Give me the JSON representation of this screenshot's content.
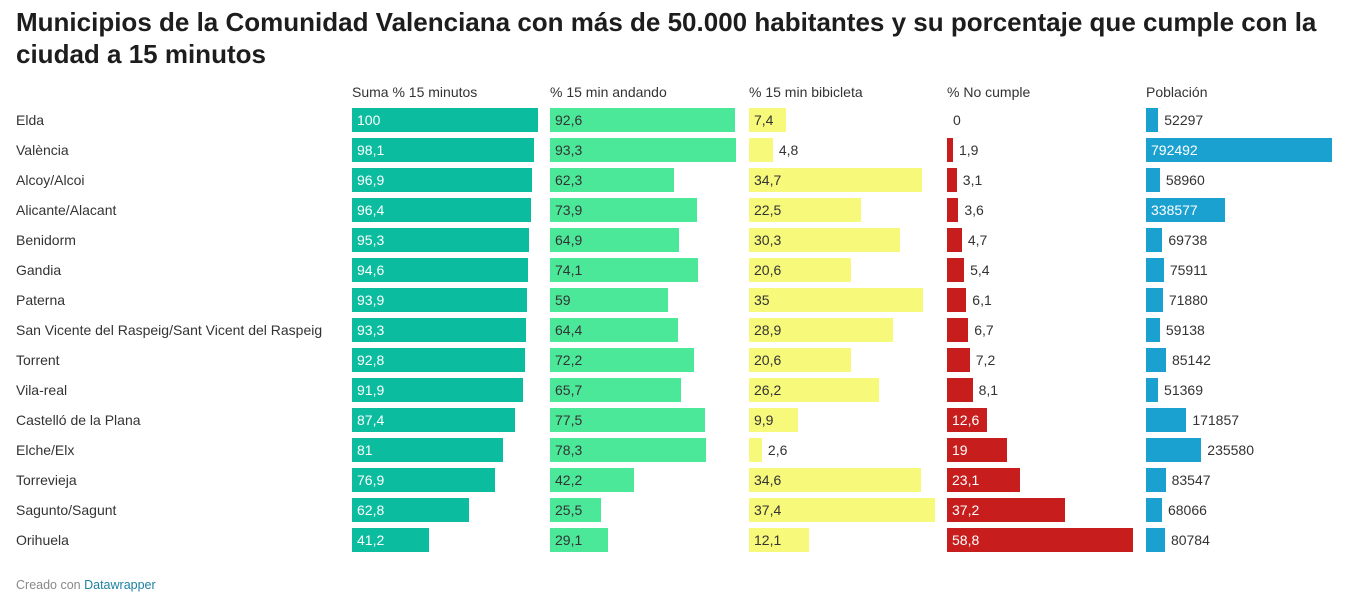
{
  "title": "Municipios de la Comunidad Valenciana con más de 50.000 habitantes y su porcentaje que cumple con la ciudad a 15 minutos",
  "footer": {
    "prefix": "Creado con",
    "link": "Datawrapper"
  },
  "chart_data": {
    "type": "table",
    "rows": [
      "Elda",
      "València",
      "Alcoy/Alcoi",
      "Alicante/Alacant",
      "Benidorm",
      "Gandia",
      "Paterna",
      "San Vicente del Raspeig/Sant Vicent del Raspeig",
      "Torrent",
      "Vila-real",
      "Castelló de la Plana",
      "Elche/Elx",
      "Torrevieja",
      "Sagunto/Sagunt",
      "Orihuela"
    ],
    "columns": [
      {
        "name": "Suma % 15 minutos",
        "color": "#0bbc9f",
        "text": "#fff",
        "values": [
          100,
          98.1,
          96.9,
          96.4,
          95.3,
          94.6,
          93.9,
          93.3,
          92.8,
          91.9,
          87.4,
          81,
          76.9,
          62.8,
          41.2
        ],
        "labels": [
          "100",
          "98,1",
          "96,9",
          "96,4",
          "95,3",
          "94,6",
          "93,9",
          "93,3",
          "92,8",
          "91,9",
          "87,4",
          "81",
          "76,9",
          "62,8",
          "41,2"
        ]
      },
      {
        "name": "% 15 min andando",
        "color": "#4ce89a",
        "text": "#333",
        "values": [
          92.6,
          93.3,
          62.3,
          73.9,
          64.9,
          74.1,
          59,
          64.4,
          72.2,
          65.7,
          77.5,
          78.3,
          42.2,
          25.5,
          29.1
        ],
        "labels": [
          "92,6",
          "93,3",
          "62,3",
          "73,9",
          "64,9",
          "74,1",
          "59",
          "64,4",
          "72,2",
          "65,7",
          "77,5",
          "78,3",
          "42,2",
          "25,5",
          "29,1"
        ]
      },
      {
        "name": "% 15 min bibicleta",
        "color": "#f7f97a",
        "text": "#333",
        "values": [
          7.4,
          4.8,
          34.7,
          22.5,
          30.3,
          20.6,
          35,
          28.9,
          20.6,
          26.2,
          9.9,
          2.6,
          34.6,
          37.4,
          12.1
        ],
        "labels": [
          "7,4",
          "4,8",
          "34,7",
          "22,5",
          "30,3",
          "20,6",
          "35",
          "28,9",
          "20,6",
          "26,2",
          "9,9",
          "2,6",
          "34,6",
          "37,4",
          "12,1"
        ]
      },
      {
        "name": "% No cumple",
        "color": "#c71e1d",
        "text": "#fff",
        "values": [
          0,
          1.9,
          3.1,
          3.6,
          4.7,
          5.4,
          6.1,
          6.7,
          7.2,
          8.1,
          12.6,
          19,
          23.1,
          37.2,
          58.8
        ],
        "labels": [
          "0",
          "1,9",
          "3,1",
          "3,6",
          "4,7",
          "5,4",
          "6,1",
          "6,7",
          "7,2",
          "8,1",
          "12,6",
          "19",
          "23,1",
          "37,2",
          "58,8"
        ]
      },
      {
        "name": "Población",
        "color": "#1ba1d0",
        "text": "#fff",
        "values": [
          52297,
          792492,
          58960,
          338577,
          69738,
          75911,
          71880,
          59138,
          85142,
          51369,
          171857,
          235580,
          83547,
          68066,
          80784
        ],
        "labels": [
          "52297",
          "792492",
          "58960",
          "338577",
          "69738",
          "75911",
          "71880",
          "59138",
          "85142",
          "51369",
          "171857",
          "235580",
          "83547",
          "68066",
          "80784"
        ]
      }
    ]
  }
}
